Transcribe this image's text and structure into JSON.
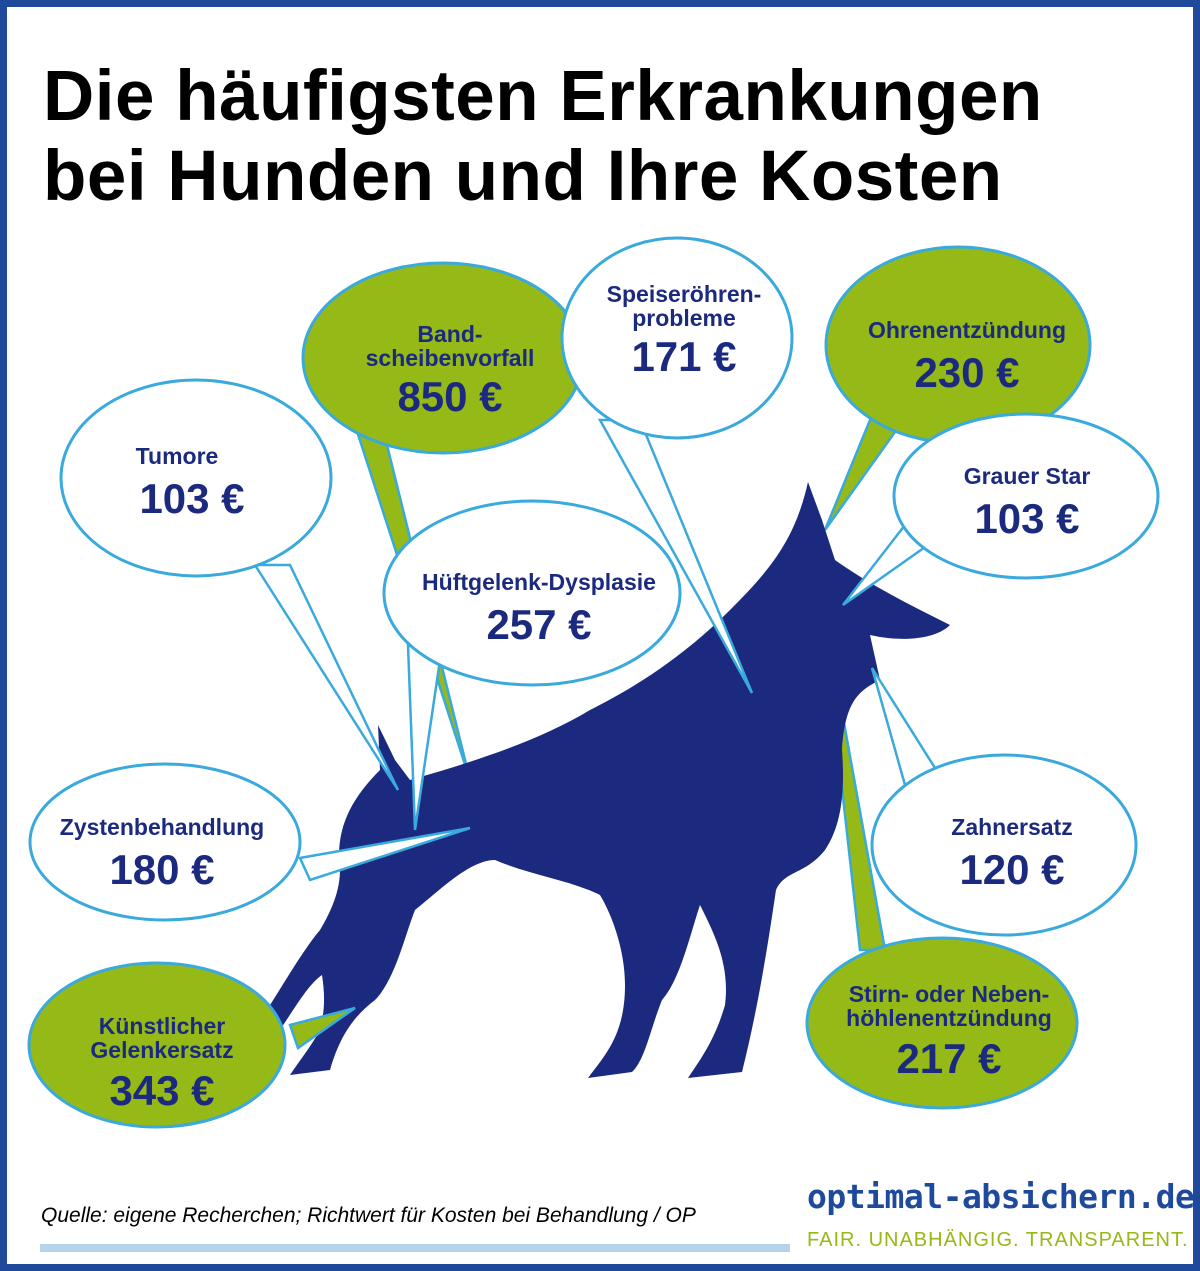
{
  "title": {
    "line1": "Die häufigsten Erkrankungen",
    "line2": "bei Hunden und Ihre Kosten"
  },
  "colors": {
    "border": "#1f4a9c",
    "dog": "#1b2a7e",
    "bubble_green": "#95b917",
    "bubble_outline": "#3aa9dc",
    "label_text": "#1b2a7e"
  },
  "bubbles": [
    {
      "id": "bandscheibenvorfall",
      "name_lines": [
        "Band-",
        "scheibenvorfall"
      ],
      "cost": "850 €",
      "fill": "green"
    },
    {
      "id": "speiseroehrenprobleme",
      "name_lines": [
        "Speiseröhren-",
        "probleme"
      ],
      "cost": "171 €",
      "fill": "white"
    },
    {
      "id": "ohrenentzuendung",
      "name_lines": [
        "Ohrenentzündung"
      ],
      "cost": "230 €",
      "fill": "green"
    },
    {
      "id": "tumore",
      "name_lines": [
        "Tumore"
      ],
      "cost": "103 €",
      "fill": "white"
    },
    {
      "id": "grauer-star",
      "name_lines": [
        "Grauer Star"
      ],
      "cost": "103 €",
      "fill": "white"
    },
    {
      "id": "hueftgelenk-dysplasie",
      "name_lines": [
        "Hüftgelenk-Dysplasie"
      ],
      "cost": "257 €",
      "fill": "white"
    },
    {
      "id": "zystenbehandlung",
      "name_lines": [
        "Zystenbehandlung"
      ],
      "cost": "180 €",
      "fill": "white"
    },
    {
      "id": "zahnersatz",
      "name_lines": [
        "Zahnersatz"
      ],
      "cost": "120 €",
      "fill": "white"
    },
    {
      "id": "kuenstlicher-gelenkersatz",
      "name_lines": [
        "Künstlicher",
        "Gelenkersatz"
      ],
      "cost": "343 €",
      "fill": "green"
    },
    {
      "id": "stirn-nebenhoehlenentzuendung",
      "name_lines": [
        "Stirn- oder Neben-",
        "höhlenentzündung"
      ],
      "cost": "217 €",
      "fill": "green"
    }
  ],
  "footer": {
    "source": "Quelle: eigene Recherchen; Richtwert für Kosten bei Behandlung / OP",
    "brand": "optimal-absichern.de",
    "tagline": "FAIR. UNABHÄNGIG. TRANSPARENT."
  }
}
